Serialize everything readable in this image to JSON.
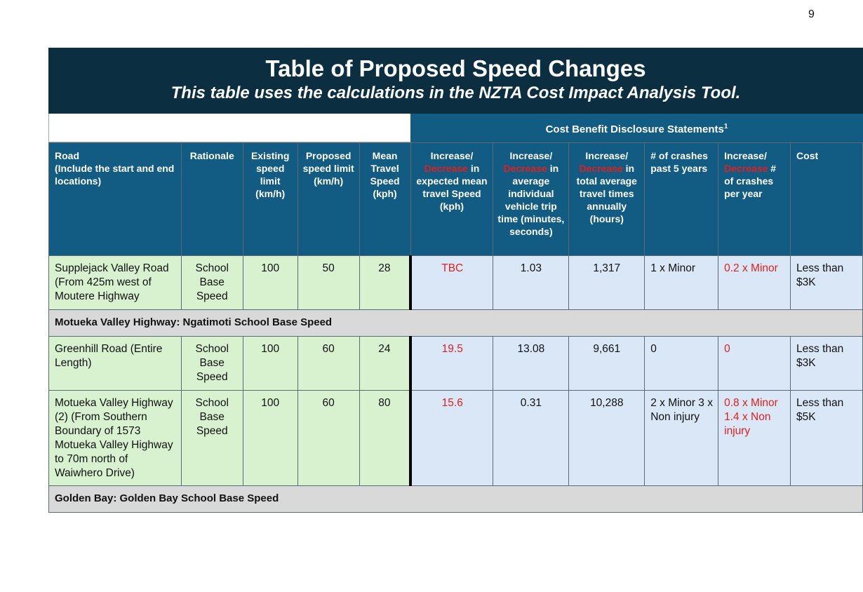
{
  "page_number": "9",
  "banner": {
    "title": "Table of Proposed Speed Changes",
    "subtitle": "This table uses the calculations in the NZTA Cost Impact Analysis Tool."
  },
  "cost_benefit_heading": "Cost Benefit Disclosure Statements",
  "cost_benefit_footnote": "1",
  "headers": {
    "road_line1": "Road",
    "road_line2": "(Include the start and end locations)",
    "rationale": "Rationale",
    "existing": "Existing speed limit (km/h)",
    "proposed": "Proposed speed limit (km/h)",
    "mean": "Mean Travel Speed (kph)",
    "inc_mean_a": "Increase/",
    "inc_mean_dec": "Decrease",
    "inc_mean_b": " in expected mean travel Speed (kph)",
    "inc_trip_a": "Increase/",
    "inc_trip_dec": "Decrease",
    "inc_trip_b": " in average individual vehicle trip time (minutes, seconds)",
    "inc_total_a": "Increase/",
    "inc_total_dec": "Decrease",
    "inc_total_b": " in total average travel times annually (hours)",
    "crashes": "# of crashes past 5 years",
    "inc_crash_a": "Increase/",
    "inc_crash_dec": "Decrease",
    "inc_crash_b": " # of crashes per year",
    "cost": "Cost"
  },
  "rows": [
    {
      "road": "Supplejack Valley Road (From 425m west of Moutere Highway",
      "rationale": "School Base Speed",
      "existing": "100",
      "proposed": "50",
      "mean": "28",
      "inc_mean": "TBC",
      "inc_trip": "1.03",
      "inc_total": "1,317",
      "crashes": "1 x Minor",
      "inc_crash": "0.2 x Minor",
      "cost": "Less than $3K"
    },
    {
      "road": "Greenhill Road (Entire Length)",
      "rationale": "School Base Speed",
      "existing": "100",
      "proposed": "60",
      "mean": "24",
      "inc_mean": "19.5",
      "inc_trip": "13.08",
      "inc_total": "9,661",
      "crashes": "0",
      "inc_crash": "0",
      "cost": "Less than $3K"
    },
    {
      "road": "Motueka Valley Highway (2) (From Southern Boundary of 1573 Motueka Valley Highway to 70m north of Waiwhero Drive)",
      "rationale": "School Base Speed",
      "existing": "100",
      "proposed": "60",
      "mean": "80",
      "inc_mean": "15.6",
      "inc_trip": "0.31",
      "inc_total": "10,288",
      "crashes": "2 x Minor 3 x Non injury",
      "inc_crash": "0.8 x Minor 1.4 x Non injury",
      "cost": "Less than $5K"
    }
  ],
  "sections": [
    "Motueka Valley Highway: Ngatimoti School Base Speed",
    "Golden Bay: Golden Bay School Base Speed"
  ]
}
